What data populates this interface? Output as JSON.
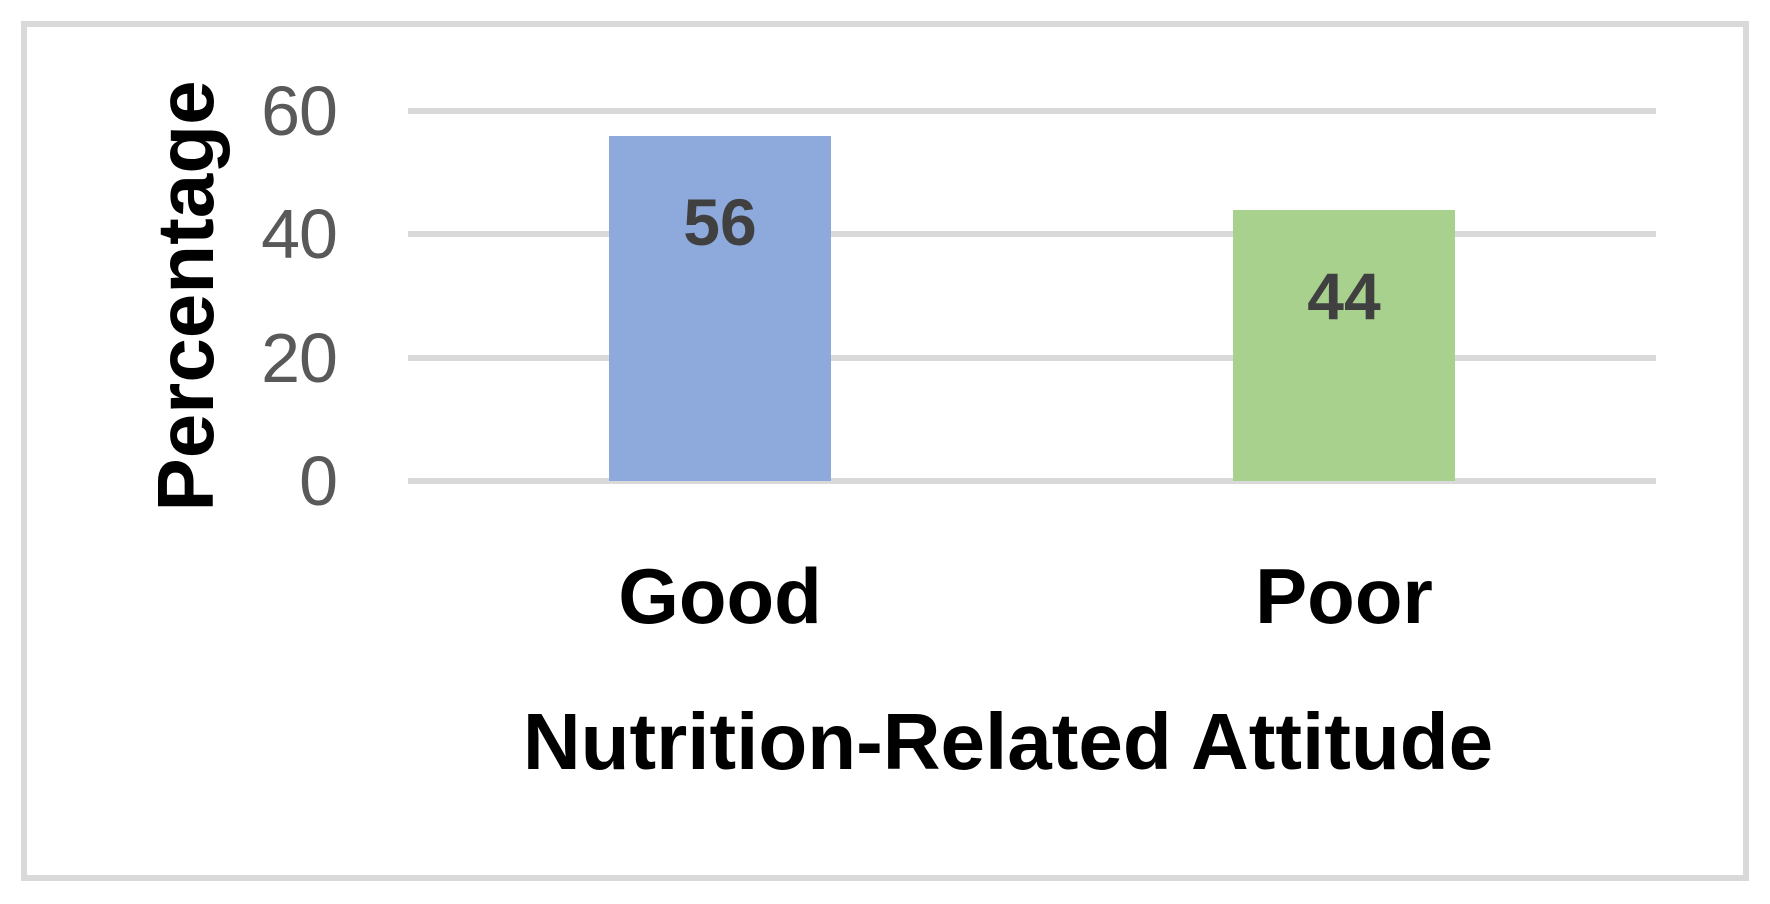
{
  "chart_data": {
    "type": "bar",
    "title": "",
    "xlabel": "Nutrition-Related Attitude",
    "ylabel": "Percentage",
    "categories": [
      "Good",
      "Poor"
    ],
    "values": [
      56,
      44
    ],
    "data_labels": [
      "56",
      "44"
    ],
    "bar_colors": [
      "#8EA9DB",
      "#A9D18E"
    ],
    "y_ticks": [
      0,
      20,
      40,
      60
    ],
    "ylim": [
      0,
      60
    ],
    "grid": true,
    "legend_position": "none",
    "gridline_color": "#D9D9D9",
    "frame_color": "#D9D9D9",
    "tick_label_color": "#595959",
    "data_label_color": "#404040"
  }
}
